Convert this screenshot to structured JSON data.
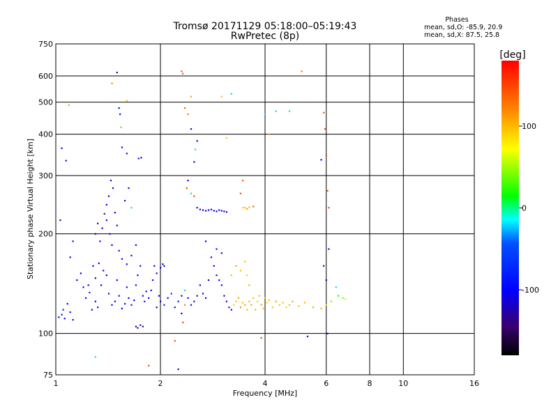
{
  "chart_data": {
    "type": "scatter",
    "title": "Tromsø 20171129 05:18:00–05:19:43",
    "subtitle": "RwPretec (8p)",
    "xlabel": "Frequency [MHz]",
    "ylabel": "Stationary phase Virtual Height [km]",
    "xscale": "log",
    "yscale": "log",
    "xlim": [
      1,
      16
    ],
    "ylim": [
      75,
      750
    ],
    "xticks": [
      1,
      2,
      4,
      6,
      8,
      10,
      16
    ],
    "yticks": [
      75,
      100,
      200,
      300,
      400,
      500,
      600,
      750
    ],
    "grid": true,
    "legend_position": "top-right",
    "stats": {
      "title": "Phases",
      "line_o": "mean, sd,O: -85.9, 20.9",
      "line_x": "mean, sd,X:  87.5, 25.8"
    },
    "colorbar": {
      "label": "[deg]",
      "ticks": [
        100,
        0,
        -100
      ],
      "range": [
        -180,
        180
      ],
      "colormap": "rainbow"
    },
    "points": [
      [
        1.02,
        112,
        -100
      ],
      [
        1.04,
        114,
        -90
      ],
      [
        1.05,
        118,
        -80
      ],
      [
        1.06,
        111,
        -110
      ],
      [
        1.08,
        123,
        -100
      ],
      [
        1.1,
        116,
        -95
      ],
      [
        1.12,
        110,
        -120
      ],
      [
        1.03,
        220,
        -110
      ],
      [
        1.04,
        363,
        -100
      ],
      [
        1.07,
        333,
        -120
      ],
      [
        1.09,
        490,
        30
      ],
      [
        1.1,
        170,
        -100
      ],
      [
        1.12,
        190,
        -90
      ],
      [
        1.15,
        145,
        -100
      ],
      [
        1.18,
        152,
        -110
      ],
      [
        1.2,
        138,
        -95
      ],
      [
        1.22,
        128,
        -100
      ],
      [
        1.25,
        133,
        -80
      ],
      [
        1.28,
        160,
        -100
      ],
      [
        1.3,
        147,
        -120
      ],
      [
        1.32,
        120,
        -90
      ],
      [
        1.35,
        140,
        -105
      ],
      [
        1.37,
        155,
        -100
      ],
      [
        1.3,
        125,
        -110
      ],
      [
        1.27,
        118,
        -100
      ],
      [
        1.24,
        140,
        -95
      ],
      [
        1.33,
        163,
        -100
      ],
      [
        1.3,
        200,
        -110
      ],
      [
        1.32,
        215,
        -120
      ],
      [
        1.34,
        190,
        -100
      ],
      [
        1.36,
        208,
        -105
      ],
      [
        1.38,
        230,
        -115
      ],
      [
        1.4,
        245,
        -100
      ],
      [
        1.42,
        260,
        -110
      ],
      [
        1.44,
        290,
        -120
      ],
      [
        1.46,
        275,
        -100
      ],
      [
        1.4,
        220,
        -105
      ],
      [
        1.43,
        200,
        -95
      ],
      [
        1.45,
        185,
        -110
      ],
      [
        1.48,
        232,
        -100
      ],
      [
        1.5,
        212,
        -110
      ],
      [
        1.52,
        178,
        -100
      ],
      [
        1.55,
        168,
        -95
      ],
      [
        1.4,
        150,
        -100
      ],
      [
        1.42,
        132,
        -95
      ],
      [
        1.45,
        122,
        -110
      ],
      [
        1.48,
        125,
        -105
      ],
      [
        1.5,
        145,
        -100
      ],
      [
        1.52,
        130,
        -90
      ],
      [
        1.55,
        119,
        -100
      ],
      [
        1.58,
        123,
        -95
      ],
      [
        1.6,
        138,
        -110
      ],
      [
        1.62,
        128,
        -100
      ],
      [
        1.65,
        122,
        -90
      ],
      [
        1.68,
        126,
        -100
      ],
      [
        1.7,
        140,
        -105
      ],
      [
        1.72,
        150,
        -100
      ],
      [
        1.75,
        160,
        -110
      ],
      [
        1.78,
        130,
        -95
      ],
      [
        1.6,
        162,
        -100
      ],
      [
        1.65,
        172,
        -110
      ],
      [
        1.7,
        185,
        -100
      ],
      [
        1.58,
        252,
        -105
      ],
      [
        1.62,
        275,
        -100
      ],
      [
        1.65,
        240,
        -20
      ],
      [
        1.6,
        350,
        -110
      ],
      [
        1.55,
        365,
        -100
      ],
      [
        1.5,
        615,
        -120
      ],
      [
        1.52,
        480,
        -100
      ],
      [
        1.53,
        460,
        -95
      ],
      [
        1.54,
        420,
        30
      ],
      [
        1.45,
        570,
        120
      ],
      [
        1.6,
        505,
        100
      ],
      [
        1.76,
        340,
        -100
      ],
      [
        1.73,
        338,
        -95
      ],
      [
        1.7,
        105,
        -130
      ],
      [
        1.72,
        104,
        -120
      ],
      [
        1.75,
        106,
        -110
      ],
      [
        1.78,
        105,
        -125
      ],
      [
        1.8,
        125,
        -100
      ],
      [
        1.82,
        134,
        -110
      ],
      [
        1.85,
        128,
        -100
      ],
      [
        1.88,
        135,
        -95
      ],
      [
        1.9,
        145,
        -100
      ],
      [
        1.92,
        160,
        -110
      ],
      [
        1.95,
        152,
        -105
      ],
      [
        2.0,
        158,
        -100
      ],
      [
        2.03,
        162,
        -110
      ],
      [
        2.05,
        160,
        -100
      ],
      [
        1.98,
        130,
        -95
      ],
      [
        1.95,
        120,
        -110
      ],
      [
        2.0,
        125,
        -100
      ],
      [
        2.05,
        122,
        -80
      ],
      [
        2.1,
        128,
        -100
      ],
      [
        2.15,
        132,
        -60
      ],
      [
        2.2,
        120,
        -90
      ],
      [
        2.25,
        125,
        -100
      ],
      [
        2.3,
        130,
        -110
      ],
      [
        2.35,
        135,
        -20
      ],
      [
        2.4,
        128,
        -100
      ],
      [
        2.45,
        122,
        -90
      ],
      [
        2.5,
        125,
        -100
      ],
      [
        2.55,
        130,
        -110
      ],
      [
        2.6,
        140,
        -100
      ],
      [
        2.65,
        132,
        -95
      ],
      [
        2.7,
        128,
        -100
      ],
      [
        2.75,
        145,
        -110
      ],
      [
        2.3,
        115,
        -120
      ],
      [
        2.32,
        108,
        150
      ],
      [
        2.35,
        122,
        120
      ],
      [
        2.2,
        95,
        150
      ],
      [
        2.25,
        78,
        -130
      ],
      [
        1.85,
        80,
        150
      ],
      [
        1.3,
        85,
        0
      ],
      [
        2.3,
        620,
        140
      ],
      [
        2.32,
        610,
        140
      ],
      [
        2.35,
        480,
        140
      ],
      [
        2.4,
        460,
        130
      ],
      [
        2.45,
        520,
        110
      ],
      [
        2.5,
        330,
        -110
      ],
      [
        2.52,
        360,
        -20
      ],
      [
        2.55,
        382,
        -100
      ],
      [
        2.45,
        415,
        -110
      ],
      [
        2.4,
        290,
        -100
      ],
      [
        2.38,
        275,
        150
      ],
      [
        2.45,
        265,
        -20
      ],
      [
        2.55,
        240,
        -110
      ],
      [
        2.6,
        237,
        -100
      ],
      [
        2.65,
        236,
        -105
      ],
      [
        2.7,
        235,
        -110
      ],
      [
        2.75,
        236,
        -100
      ],
      [
        2.8,
        237,
        -105
      ],
      [
        2.85,
        235,
        -100
      ],
      [
        2.9,
        234,
        -110
      ],
      [
        2.95,
        236,
        -105
      ],
      [
        3.0,
        235,
        -100
      ],
      [
        3.05,
        234,
        -110
      ],
      [
        3.1,
        233,
        -100
      ],
      [
        2.5,
        260,
        150
      ],
      [
        2.8,
        170,
        -100
      ],
      [
        2.85,
        160,
        -110
      ],
      [
        2.9,
        150,
        -100
      ],
      [
        2.95,
        145,
        -95
      ],
      [
        3.0,
        140,
        -100
      ],
      [
        3.05,
        130,
        -110
      ],
      [
        3.1,
        125,
        -100
      ],
      [
        3.15,
        120,
        -80
      ],
      [
        3.2,
        118,
        -100
      ],
      [
        3.25,
        122,
        90
      ],
      [
        3.3,
        125,
        100
      ],
      [
        3.35,
        128,
        110
      ],
      [
        3.4,
        120,
        120
      ],
      [
        3.45,
        124,
        100
      ],
      [
        3.5,
        122,
        110
      ],
      [
        3.55,
        118,
        100
      ],
      [
        3.2,
        150,
        100
      ],
      [
        3.3,
        160,
        110
      ],
      [
        3.4,
        155,
        100
      ],
      [
        3.5,
        165,
        100
      ],
      [
        3.55,
        150,
        90
      ],
      [
        3.6,
        140,
        100
      ],
      [
        3.5,
        240,
        100
      ],
      [
        3.55,
        238,
        110
      ],
      [
        3.6,
        241,
        100
      ],
      [
        3.45,
        240,
        90
      ],
      [
        3.7,
        242,
        140
      ],
      [
        3.4,
        265,
        150
      ],
      [
        3.45,
        290,
        140
      ],
      [
        3.1,
        390,
        100
      ],
      [
        3.2,
        530,
        -20
      ],
      [
        3.0,
        520,
        100
      ],
      [
        3.6,
        125,
        100
      ],
      [
        3.65,
        122,
        110
      ],
      [
        3.7,
        128,
        100
      ],
      [
        3.75,
        118,
        100
      ],
      [
        3.8,
        125,
        90
      ],
      [
        3.85,
        130,
        100
      ],
      [
        3.9,
        122,
        110
      ],
      [
        3.95,
        119,
        100
      ],
      [
        4.0,
        128,
        100
      ],
      [
        4.05,
        124,
        90
      ],
      [
        4.1,
        126,
        100
      ],
      [
        4.2,
        120,
        100
      ],
      [
        4.3,
        125,
        110
      ],
      [
        4.4,
        122,
        100
      ],
      [
        4.5,
        124,
        100
      ],
      [
        4.6,
        120,
        90
      ],
      [
        4.7,
        122,
        100
      ],
      [
        4.8,
        125,
        110
      ],
      [
        5.0,
        121,
        100
      ],
      [
        5.2,
        124,
        100
      ],
      [
        5.5,
        120,
        110
      ],
      [
        5.8,
        119,
        100
      ],
      [
        6.0,
        122,
        90
      ],
      [
        6.2,
        125,
        100
      ],
      [
        6.5,
        130,
        20
      ],
      [
        6.7,
        128,
        40
      ],
      [
        6.8,
        127,
        60
      ],
      [
        6.4,
        138,
        -20
      ],
      [
        6.0,
        145,
        -100
      ],
      [
        5.9,
        160,
        -110
      ],
      [
        6.1,
        180,
        -100
      ],
      [
        6.05,
        100,
        -120
      ],
      [
        4.0,
        460,
        -20
      ],
      [
        4.1,
        400,
        110
      ],
      [
        4.3,
        470,
        -20
      ],
      [
        4.7,
        470,
        -20
      ],
      [
        5.9,
        465,
        150
      ],
      [
        5.95,
        415,
        150
      ],
      [
        6.0,
        345,
        150
      ],
      [
        6.05,
        270,
        150
      ],
      [
        6.1,
        240,
        150
      ],
      [
        5.8,
        335,
        -110
      ],
      [
        5.1,
        620,
        130
      ],
      [
        3.9,
        97,
        150
      ],
      [
        5.3,
        98,
        -130
      ],
      [
        3.0,
        175,
        -110
      ],
      [
        2.9,
        180,
        -100
      ],
      [
        2.7,
        190,
        -110
      ]
    ]
  }
}
